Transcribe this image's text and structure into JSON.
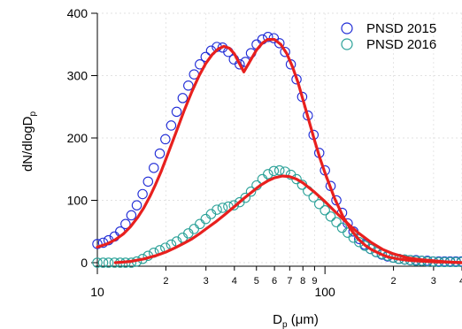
{
  "chart_data": {
    "type": "scatter",
    "xlabel_main": "D",
    "xlabel_sub": "p",
    "xlabel_unit": " (μm)",
    "ylabel_main": "dN/dlogD",
    "ylabel_sub": "p",
    "x_scale": "log",
    "xlim": [
      10,
      400
    ],
    "ylim": [
      0,
      400
    ],
    "grid": true,
    "legend_position": "top-right",
    "y_ticks": [
      0,
      100,
      200,
      300,
      400
    ],
    "x_major_ticks": [
      10,
      100
    ],
    "x_major_labels": [
      "10",
      "100"
    ],
    "x_minor_ticks": [
      2,
      3,
      4,
      5,
      6,
      7,
      8,
      9,
      20,
      30,
      40
    ],
    "x_minor_labels": [
      "",
      "",
      "",
      "",
      "",
      "",
      "",
      "",
      "2",
      "3",
      "4"
    ],
    "x_minor_first_decade_labels": [
      "2",
      "3",
      "4",
      "5",
      "6",
      "7",
      "8",
      "9"
    ],
    "series": [
      {
        "name": "PNSD 2015",
        "marker": "open-circle",
        "color": "#1f2bd6",
        "fit_color": "#e8201e",
        "x": [
          10.0,
          10.6,
          11.2,
          11.9,
          12.6,
          13.3,
          14.1,
          14.9,
          15.8,
          16.7,
          17.7,
          18.8,
          19.9,
          21.1,
          22.3,
          23.7,
          25.1,
          26.6,
          28.2,
          29.9,
          31.6,
          33.5,
          35.5,
          37.6,
          39.8,
          42.2,
          44.7,
          47.3,
          50.1,
          53.1,
          56.2,
          59.6,
          63.1,
          66.8,
          70.8,
          75.0,
          79.4,
          84.1,
          89.1,
          94.4,
          100.0,
          105.9,
          112.2,
          118.9,
          125.9,
          133.4,
          141.3,
          149.6,
          158.5,
          167.9,
          177.8,
          188.4,
          199.5,
          211.3,
          223.9,
          237.1,
          251.2,
          266.1,
          281.8,
          298.5,
          316.2,
          335.0,
          354.8,
          375.8,
          398.1
        ],
        "y": [
          30,
          32,
          36,
          42,
          50,
          62,
          76,
          92,
          110,
          130,
          152,
          175,
          198,
          220,
          242,
          264,
          284,
          302,
          318,
          330,
          340,
          346,
          345,
          338,
          326,
          318,
          322,
          336,
          350,
          358,
          362,
          360,
          352,
          338,
          318,
          294,
          266,
          236,
          205,
          176,
          148,
          123,
          100,
          80,
          63,
          50,
          38,
          29,
          22,
          17,
          13,
          10,
          8,
          6,
          5,
          4,
          4,
          3,
          3,
          2,
          2,
          2,
          2,
          2,
          2
        ],
        "fit_x": [
          10,
          11,
          12,
          13,
          14,
          15,
          16,
          17,
          18,
          19,
          20,
          22,
          24,
          26,
          28,
          30,
          32,
          34,
          36,
          38,
          40,
          42,
          44,
          46,
          48,
          50,
          53,
          56,
          60,
          64,
          68,
          72,
          76,
          80,
          85,
          90,
          95,
          100,
          110,
          120,
          130,
          140,
          150,
          160,
          175,
          190,
          210,
          230,
          250,
          280,
          310,
          350,
          400
        ],
        "fit_y": [
          25,
          30,
          37,
          46,
          58,
          72,
          88,
          106,
          125,
          145,
          166,
          206,
          243,
          274,
          300,
          320,
          334,
          343,
          347,
          344,
          335,
          320,
          306,
          318,
          330,
          341,
          352,
          358,
          358,
          350,
          335,
          314,
          290,
          262,
          228,
          196,
          168,
          144,
          104,
          74,
          53,
          38,
          28,
          21,
          14,
          9,
          6,
          4,
          3,
          2,
          1,
          1,
          0
        ]
      },
      {
        "name": "PNSD 2016",
        "marker": "open-circle",
        "color": "#2aa198",
        "fit_color": "#e8201e",
        "x": [
          10.0,
          10.6,
          11.2,
          11.9,
          12.6,
          13.3,
          14.1,
          14.9,
          15.8,
          16.7,
          17.7,
          18.8,
          19.9,
          21.1,
          22.3,
          23.7,
          25.1,
          26.6,
          28.2,
          29.9,
          31.6,
          33.5,
          35.5,
          37.6,
          39.8,
          42.2,
          44.7,
          47.3,
          50.1,
          53.1,
          56.2,
          59.6,
          63.1,
          66.8,
          70.8,
          75.0,
          79.4,
          84.1,
          89.1,
          94.4,
          100.0,
          105.9,
          112.2,
          118.9,
          125.9,
          133.4,
          141.3,
          149.6,
          158.5,
          167.9,
          177.8,
          188.4,
          199.5,
          211.3,
          223.9,
          237.1,
          251.2,
          266.1,
          281.8,
          298.5,
          316.2,
          335.0,
          354.8,
          375.8,
          398.1
        ],
        "y": [
          0,
          0,
          0,
          0,
          0,
          0,
          0,
          2,
          6,
          11,
          16,
          20,
          24,
          29,
          34,
          40,
          47,
          54,
          62,
          70,
          78,
          85,
          88,
          90,
          92,
          97,
          104,
          114,
          124,
          134,
          142,
          147,
          148,
          146,
          141,
          134,
          125,
          115,
          105,
          94,
          84,
          74,
          65,
          56,
          48,
          40,
          33,
          27,
          22,
          17,
          14,
          11,
          8,
          6,
          5,
          4,
          3,
          3,
          2,
          2,
          1,
          1,
          1,
          1,
          1
        ],
        "fit_x": [
          12,
          14,
          16,
          18,
          20,
          22,
          24,
          26,
          28,
          30,
          33,
          36,
          40,
          44,
          48,
          52,
          56,
          60,
          65,
          70,
          75,
          80,
          90,
          100,
          110,
          120,
          130,
          140,
          160,
          180,
          200,
          230,
          260,
          300,
          350,
          400
        ],
        "fit_y": [
          0,
          2,
          6,
          11,
          17,
          24,
          31,
          38,
          46,
          54,
          65,
          76,
          90,
          103,
          114,
          124,
          131,
          136,
          139,
          138,
          134,
          128,
          113,
          98,
          83,
          70,
          58,
          48,
          32,
          21,
          14,
          8,
          5,
          3,
          1,
          0
        ]
      }
    ]
  }
}
